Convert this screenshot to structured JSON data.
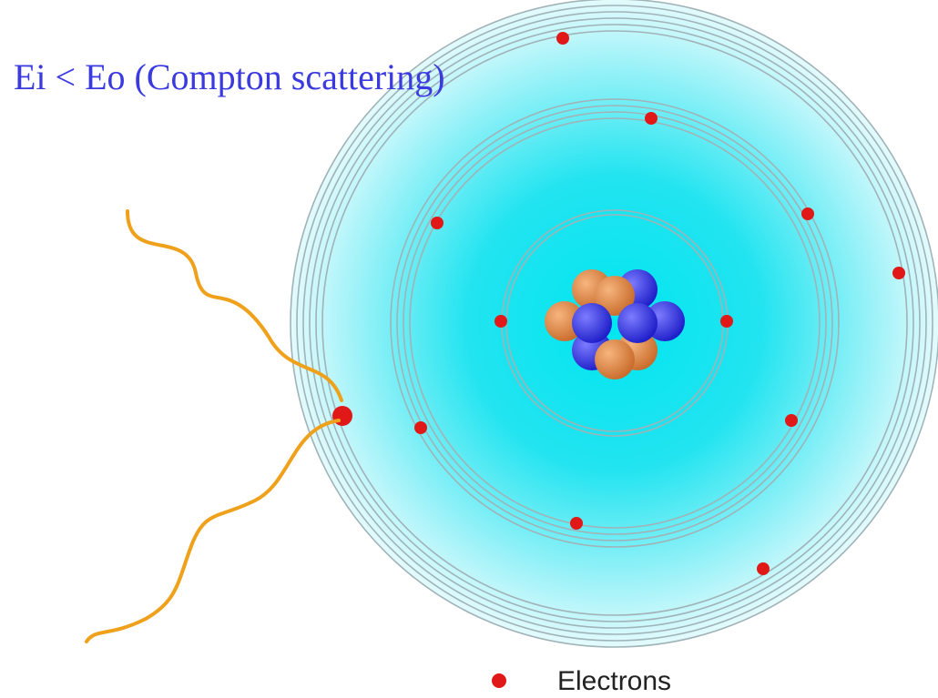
{
  "title": "Ei < Eo (Compton scattering)",
  "legend": {
    "label": "Electrons"
  }
}
